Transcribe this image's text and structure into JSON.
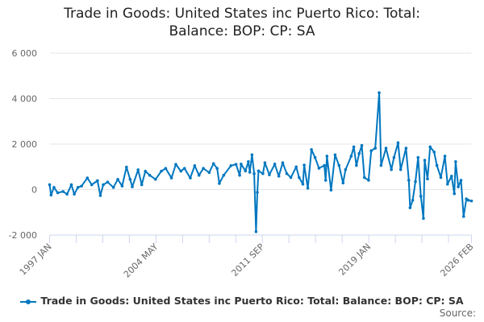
{
  "chart_data": {
    "type": "line",
    "title": "Trade in Goods: United States inc Puerto Rico: Total: Balance: BOP: CP: SA",
    "xlabel": "",
    "ylabel": "",
    "xlim": [
      1997.0,
      2026.083
    ],
    "ylim": [
      -2000,
      6000
    ],
    "yticks": [
      -2000,
      0,
      2000,
      4000,
      6000
    ],
    "ytick_labels": [
      "-2 000",
      "0",
      "2 000",
      "4 000",
      "6 000"
    ],
    "xtick_labels": [
      {
        "label": "1997 JAN",
        "x": 1997.0
      },
      {
        "label": "2004 MAY",
        "x": 2004.333
      },
      {
        "label": "2011 SEP",
        "x": 2011.667
      },
      {
        "label": "2019 JAN",
        "x": 2019.0
      },
      {
        "label": "2026 FEB",
        "x": 2026.083
      }
    ],
    "minor_tick_step_years": 1.8333,
    "grid": true,
    "legend_position": "bottom",
    "series": [
      {
        "name": "Trade in Goods: United States inc Puerto Rico: Total: Balance: BOP: CP: SA",
        "color": "#0077c0",
        "x": [
          1997.0,
          1997.1,
          1997.3,
          1997.56,
          1997.93,
          1998.2,
          1998.5,
          1998.7,
          1998.95,
          1999.2,
          1999.6,
          1999.9,
          2000.3,
          2000.5,
          2000.7,
          2001.0,
          2001.4,
          2001.7,
          2002.0,
          2002.3,
          2002.55,
          2002.7,
          2003.1,
          2003.35,
          2003.6,
          2003.9,
          2004.3,
          2004.7,
          2005.0,
          2005.4,
          2005.7,
          2006.05,
          2006.3,
          2006.7,
          2007.0,
          2007.3,
          2007.6,
          2008.0,
          2008.3,
          2008.55,
          2008.7,
          2009.0,
          2009.5,
          2009.85,
          2010.1,
          2010.2,
          2010.5,
          2010.7,
          2010.8,
          2010.95,
          2011.1,
          2011.23,
          2011.32,
          2011.4,
          2011.7,
          2011.84,
          2012.15,
          2012.52,
          2012.8,
          2013.07,
          2013.35,
          2013.63,
          2014.0,
          2014.2,
          2014.46,
          2014.55,
          2014.8,
          2015.05,
          2015.3,
          2015.57,
          2015.94,
          2016.03,
          2016.12,
          2016.4,
          2016.68,
          2016.95,
          2017.23,
          2017.4,
          2017.79,
          2017.97,
          2018.15,
          2018.34,
          2018.52,
          2018.7,
          2018.99,
          2019.17,
          2019.45,
          2019.72,
          2019.85,
          2020.19,
          2020.56,
          2020.74,
          2021.02,
          2021.2,
          2021.57,
          2021.76,
          2021.85,
          2022.03,
          2022.22,
          2022.4,
          2022.59,
          2022.77,
          2022.86,
          2023.05,
          2023.23,
          2023.51,
          2023.7,
          2023.97,
          2024.25,
          2024.43,
          2024.71,
          2024.9,
          2024.99,
          2025.17,
          2025.36,
          2025.54,
          2025.73,
          2025.87,
          2026.083
        ],
        "y": [
          214,
          -240,
          95,
          -140,
          -85,
          -200,
          214,
          -200,
          95,
          155,
          510,
          214,
          390,
          -260,
          214,
          330,
          95,
          450,
          155,
          990,
          450,
          120,
          870,
          214,
          810,
          630,
          450,
          810,
          930,
          510,
          1110,
          810,
          930,
          510,
          1050,
          630,
          930,
          750,
          1140,
          930,
          270,
          630,
          1050,
          1110,
          630,
          1120,
          820,
          1230,
          760,
          1530,
          700,
          -1850,
          -120,
          820,
          700,
          1180,
          650,
          1120,
          590,
          1180,
          700,
          530,
          1000,
          530,
          240,
          1080,
          60,
          1760,
          1410,
          940,
          1060,
          410,
          1470,
          -20,
          1530,
          1060,
          290,
          880,
          1470,
          1880,
          1060,
          1590,
          1940,
          530,
          410,
          1710,
          1820,
          4260,
          1060,
          1820,
          880,
          1410,
          2060,
          880,
          1820,
          410,
          -800,
          -470,
          350,
          1410,
          -290,
          -1270,
          1290,
          470,
          1880,
          1650,
          1060,
          530,
          1470,
          240,
          590,
          -180,
          1230,
          120,
          410,
          -1180,
          -410,
          -470,
          -500
        ]
      }
    ]
  },
  "source_label": "Source:"
}
